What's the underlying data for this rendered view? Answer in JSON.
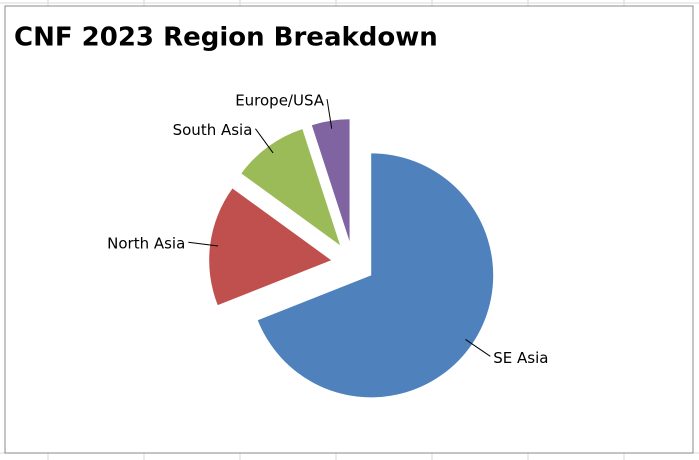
{
  "chart_data": {
    "type": "pie",
    "title": "CNF 2023 Region Breakdown",
    "categories": [
      "SE Asia",
      "North Asia",
      "South Asia",
      "Europe/USA"
    ],
    "values": [
      69,
      16,
      10,
      5
    ],
    "colors": [
      "#4f81bd",
      "#c0504d",
      "#9bbb59",
      "#8064a2"
    ],
    "exploded": true
  }
}
